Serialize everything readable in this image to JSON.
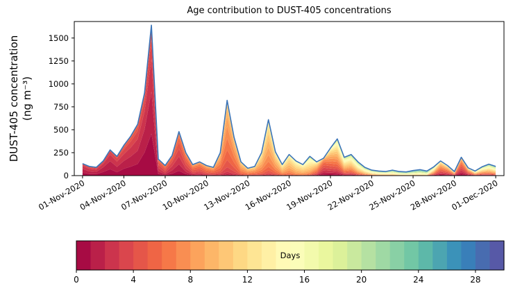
{
  "chart_data": {
    "type": "area",
    "stacked": true,
    "title": "Age contribution to DUST-405 concentrations",
    "xlabel": "",
    "ylabel_lines": [
      "DUST-405 concentration",
      "(ng m⁻³)"
    ],
    "ylim": [
      0,
      1680
    ],
    "yticks": [
      0,
      250,
      500,
      750,
      1000,
      1250,
      1500
    ],
    "x_range_days": [
      -0.6,
      30.6
    ],
    "x_tick_days": [
      0,
      3,
      6,
      9,
      12,
      15,
      18,
      21,
      24,
      27,
      30
    ],
    "x_tick_labels": [
      "01-Nov-2020",
      "04-Nov-2020",
      "07-Nov-2020",
      "10-Nov-2020",
      "13-Nov-2020",
      "16-Nov-2020",
      "19-Nov-2020",
      "22-Nov-2020",
      "25-Nov-2020",
      "28-Nov-2020",
      "01-Dec-2020"
    ],
    "age_max_days": 30,
    "outline_color": "#3b74b8",
    "colormap_spectral": [
      "#9e0142",
      "#d53e4f",
      "#f46d43",
      "#fdae61",
      "#fee08b",
      "#ffffbf",
      "#e6f598",
      "#abdda4",
      "#66c2a5",
      "#3288bd",
      "#5e4fa2"
    ],
    "colorbar": {
      "label": "Days",
      "ticks": [
        0,
        4,
        8,
        12,
        16,
        20,
        24,
        28
      ],
      "n_segments": 30
    },
    "x_days": [
      0,
      0.5,
      1,
      1.5,
      2,
      2.5,
      3,
      3.5,
      4,
      4.5,
      5,
      5.5,
      6,
      6.5,
      7,
      7.5,
      8,
      8.5,
      9,
      9.5,
      10,
      10.5,
      11,
      11.5,
      12,
      12.5,
      13,
      13.5,
      14,
      14.5,
      15,
      15.5,
      16,
      16.5,
      17,
      17.5,
      18,
      18.5,
      19,
      19.5,
      20,
      20.5,
      21,
      21.5,
      22,
      22.5,
      23,
      23.5,
      24,
      24.5,
      25,
      25.5,
      26,
      26.5,
      27,
      27.5,
      28,
      28.5,
      29,
      29.5,
      30
    ],
    "total": [
      130,
      100,
      90,
      160,
      280,
      210,
      330,
      430,
      560,
      900,
      1640,
      180,
      110,
      220,
      480,
      250,
      120,
      150,
      110,
      90,
      250,
      820,
      420,
      150,
      80,
      100,
      250,
      610,
      260,
      120,
      230,
      160,
      120,
      210,
      150,
      190,
      300,
      400,
      200,
      230,
      150,
      90,
      60,
      50,
      45,
      60,
      45,
      40,
      55,
      65,
      50,
      95,
      160,
      110,
      45,
      200,
      85,
      50,
      95,
      125,
      100
    ],
    "age_mode_days": [
      1.5,
      2,
      2,
      1.5,
      1.5,
      2,
      1.5,
      1.5,
      1.5,
      1,
      1,
      3,
      4,
      3,
      3,
      4,
      5,
      5,
      6,
      6,
      7,
      7,
      7,
      8,
      8,
      8,
      9,
      9,
      9,
      10,
      10,
      11,
      11,
      12,
      8,
      4,
      6,
      8,
      10,
      10,
      12,
      13,
      14,
      15,
      15,
      16,
      17,
      17,
      18,
      18,
      18,
      10,
      6,
      6,
      8,
      4,
      6,
      10,
      10,
      11,
      12
    ],
    "age_spread_days": [
      1.5,
      1.5,
      1.5,
      1.5,
      1.5,
      1.5,
      2,
      2,
      2,
      2,
      2,
      2,
      2,
      2,
      2.5,
      2.5,
      2.5,
      2.5,
      2.5,
      2.5,
      2.5,
      2.5,
      2.5,
      2.5,
      2.5,
      3,
      3,
      3,
      3,
      3,
      3,
      3,
      3,
      4,
      4,
      3,
      5,
      6,
      6,
      6,
      6,
      6,
      6,
      6,
      6,
      6,
      6,
      6,
      6,
      6,
      6,
      7,
      5,
      5,
      5,
      4,
      5,
      6,
      7,
      7,
      7
    ]
  }
}
